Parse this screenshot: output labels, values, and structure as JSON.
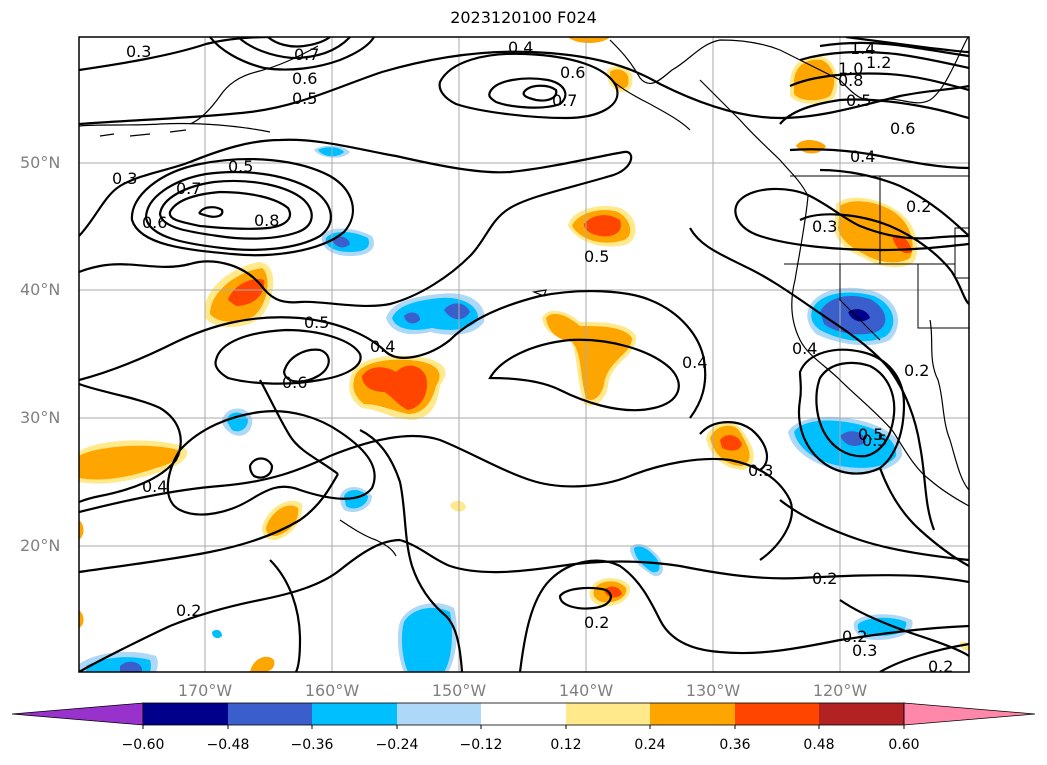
{
  "title": "2023120100 F024",
  "lat_labels": [
    "50°N",
    "40°N",
    "30°N",
    "20°N"
  ],
  "lon_labels": [
    "170°W",
    "160°W",
    "150°W",
    "140°W",
    "130°W",
    "120°W"
  ],
  "contour_labels": [
    "0.3",
    "0.4",
    "0.6",
    "0.7",
    "0.6",
    "0.5",
    "0.7",
    "1.4",
    "1.2",
    "1.0",
    "0.8",
    "0.5",
    "0.6",
    "0.4",
    "0.3",
    "0.5",
    "0.7",
    "0.6",
    "0.8",
    "0.5",
    "0.3",
    "0.2",
    "0.5",
    "0.4",
    "0.6",
    "0.4",
    "0.5",
    "0.4",
    "0.2",
    "0.4",
    "0.3",
    "0.5",
    "0.2",
    "0.2",
    "0.2",
    "0.2",
    "0.3",
    "0.2"
  ],
  "colorbar": {
    "ticks": [
      "−0.60",
      "−0.48",
      "−0.36",
      "−0.24",
      "−0.12",
      "0.12",
      "0.24",
      "0.36",
      "0.48",
      "0.60"
    ],
    "colors": {
      "under": "#9932cc",
      "c1": "#00008b",
      "c2": "#3a5fcd",
      "c3": "#00bfff",
      "c4": "#add8f7",
      "c5": "#ffffff",
      "c6": "#ffe98a",
      "c7": "#ffa500",
      "c8": "#ff4500",
      "c9": "#b22222",
      "over": "#ff88aa"
    }
  }
}
